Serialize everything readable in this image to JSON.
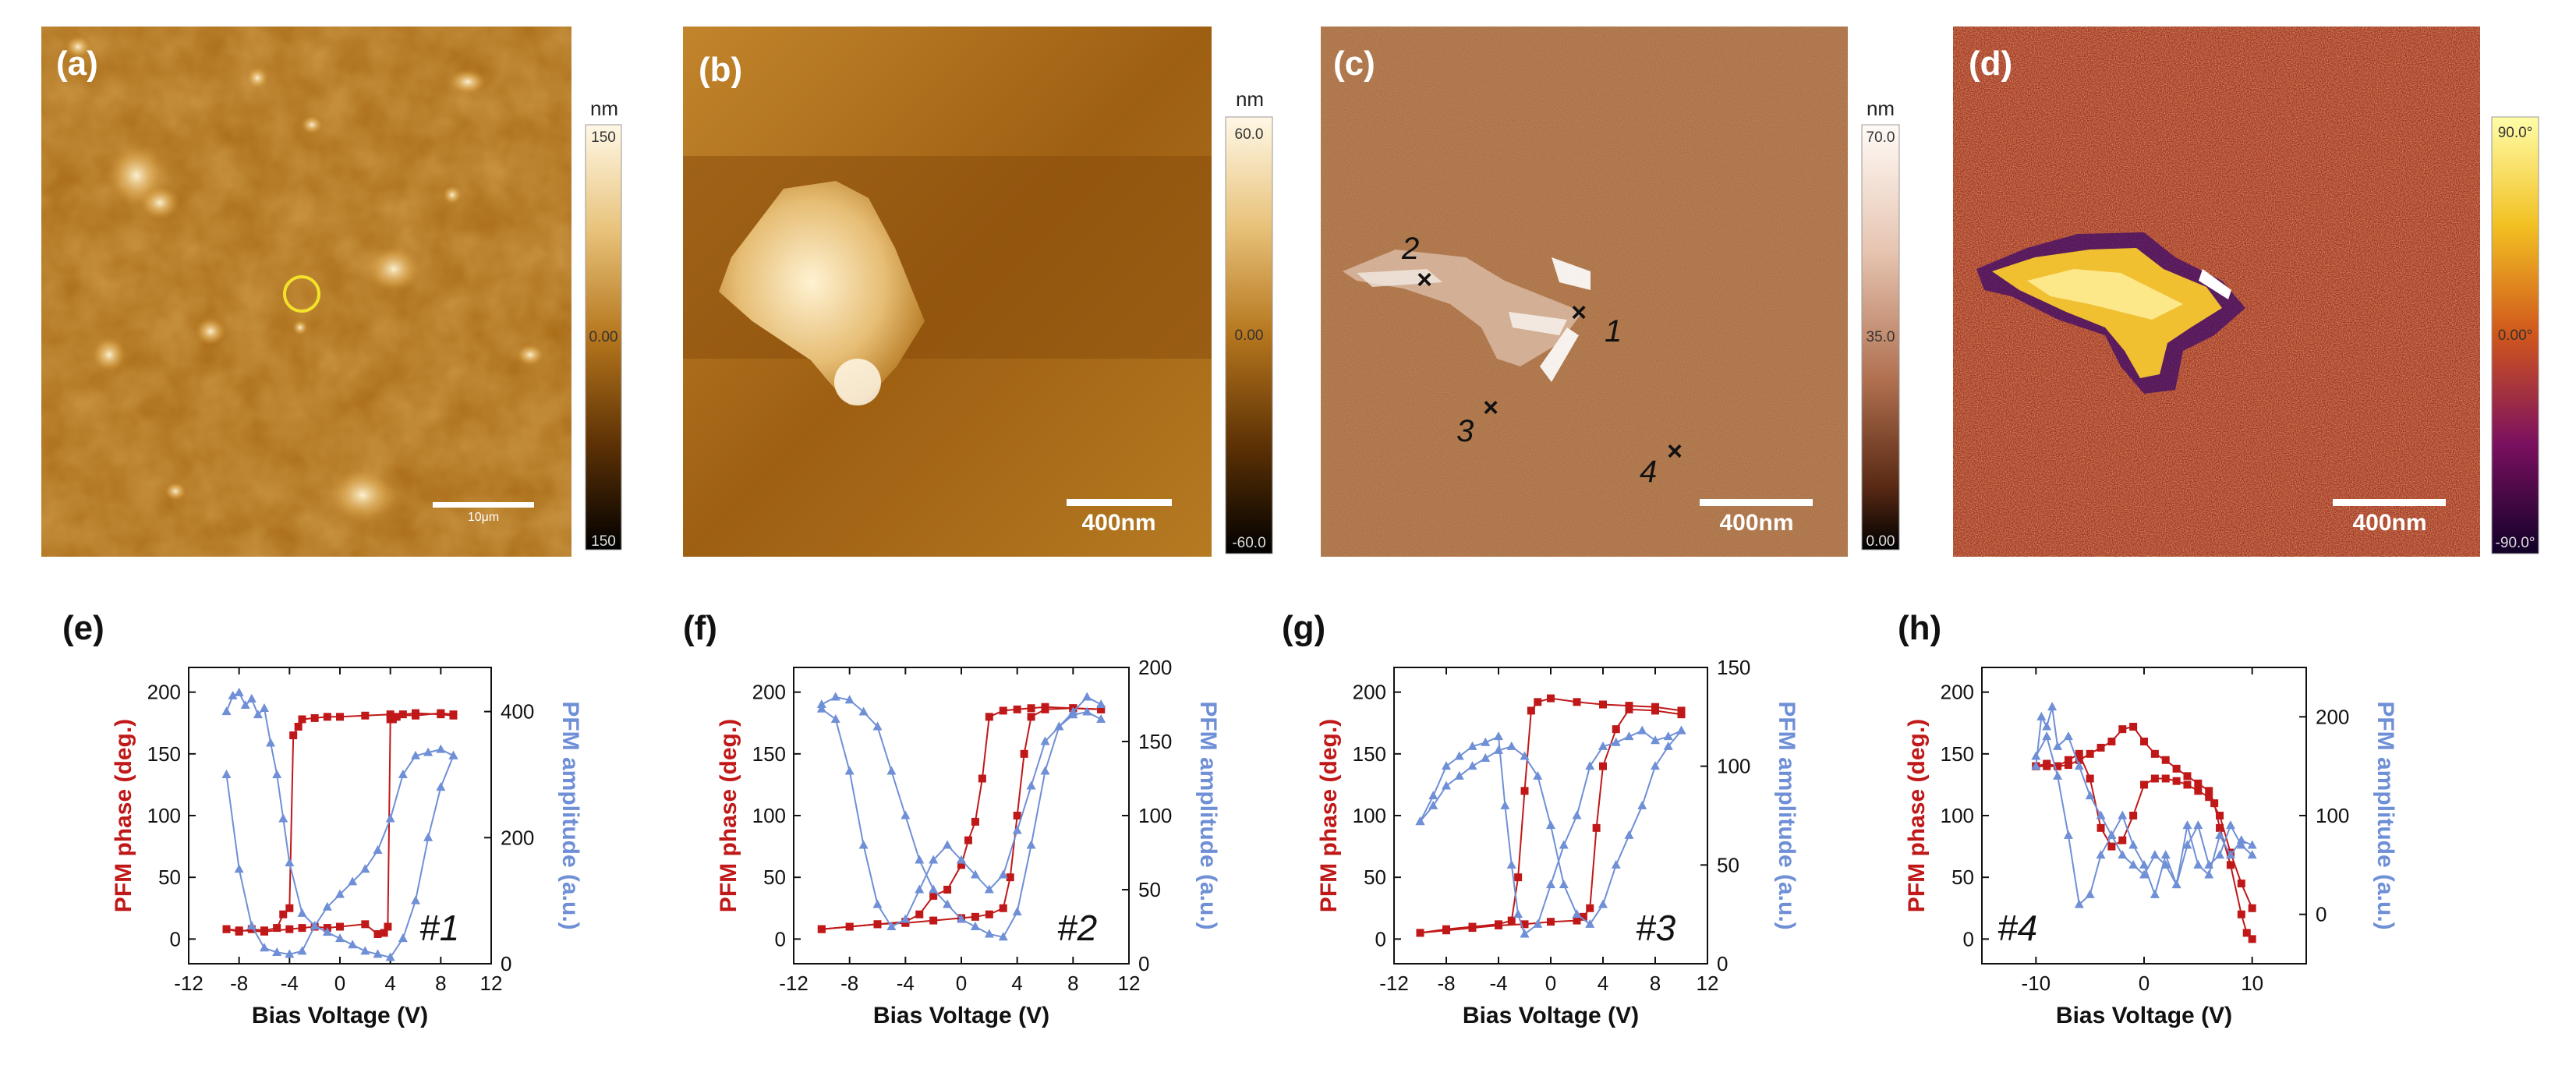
{
  "images": [
    {
      "label": "(a)",
      "colorbar_unit": "nm",
      "colorbar_ticks": [
        "150",
        "0.00",
        "150"
      ],
      "scalebar": "10μm",
      "colormap": "afm-gold"
    },
    {
      "label": "(b)",
      "colorbar_unit": "nm",
      "colorbar_ticks": [
        "60.0",
        "0.00",
        "-60.0"
      ],
      "scalebar": "400nm",
      "colormap": "afm-gold"
    },
    {
      "label": "(c)",
      "colorbar_unit": "nm",
      "colorbar_ticks": [
        "70.0",
        "35.0",
        "0.00"
      ],
      "scalebar": "400nm",
      "colormap": "afm-brown",
      "points": [
        {
          "label": "1"
        },
        {
          "label": "2"
        },
        {
          "label": "3"
        },
        {
          "label": "4"
        }
      ]
    },
    {
      "label": "(d)",
      "colorbar_unit": "",
      "colorbar_ticks": [
        "90.0°",
        "0.00°",
        "-90.0°"
      ],
      "scalebar": "400nm",
      "colormap": "phase"
    }
  ],
  "colors": {
    "phase": "#c01818",
    "amplitude": "#6f8fd6",
    "marker_circle": "#f2e22a"
  },
  "chart_data": [
    {
      "type": "line",
      "label": "(e)",
      "curve_label": "#1",
      "xlabel": "Bias Voltage (V)",
      "ylabel": "PFM phase (deg.)",
      "y2label": "PFM amplitude (a.u.)",
      "xlim": [
        -12,
        12
      ],
      "xticks": [
        -12,
        -8,
        -4,
        0,
        4,
        8,
        12
      ],
      "ylim": [
        -20,
        220
      ],
      "yticks": [
        0,
        50,
        100,
        150,
        200
      ],
      "y2lim": [
        0,
        470
      ],
      "y2ticks": [
        0,
        200,
        400
      ],
      "series": [
        {
          "axis": "y",
          "marker": "square",
          "color": "#c01818",
          "x": [
            -9,
            -8,
            -7,
            -6,
            -5,
            -4.5,
            -4,
            -3.7,
            -3.3,
            -3,
            -2,
            -1,
            0,
            2,
            4,
            6,
            8,
            9
          ],
          "y": [
            8,
            6,
            8,
            7,
            9,
            20,
            25,
            165,
            172,
            178,
            179,
            180,
            180,
            181,
            182,
            181,
            183,
            182
          ]
        },
        {
          "axis": "y",
          "marker": "square",
          "color": "#c01818",
          "x": [
            9,
            8,
            6,
            5,
            4.5,
            4.2,
            4,
            3.8,
            3.5,
            3,
            2,
            0,
            -1,
            -2,
            -3,
            -4,
            -6,
            -8,
            -9
          ],
          "y": [
            181,
            182,
            183,
            182,
            180,
            178,
            178,
            10,
            5,
            4,
            12,
            10,
            9,
            10,
            9,
            8,
            6,
            7,
            8
          ]
        },
        {
          "axis": "y2",
          "marker": "triangle",
          "color": "#6f8fd6",
          "x": [
            -9,
            -8.5,
            -8,
            -7.5,
            -7,
            -6.5,
            -6,
            -5.5,
            -5,
            -4.5,
            -4,
            -3,
            -2,
            -1,
            0,
            1,
            2,
            3,
            4,
            5,
            6,
            7,
            8,
            9
          ],
          "y": [
            400,
            425,
            430,
            410,
            420,
            395,
            405,
            350,
            300,
            230,
            160,
            80,
            60,
            50,
            40,
            30,
            20,
            15,
            10,
            40,
            100,
            200,
            280,
            330
          ]
        },
        {
          "axis": "y2",
          "marker": "triangle",
          "color": "#6f8fd6",
          "x": [
            9,
            8,
            7,
            6,
            5,
            4,
            3,
            2,
            1,
            0,
            -1,
            -2,
            -3,
            -4,
            -5,
            -6,
            -7,
            -8,
            -9
          ],
          "y": [
            330,
            340,
            335,
            330,
            300,
            230,
            180,
            150,
            130,
            110,
            90,
            60,
            20,
            15,
            18,
            25,
            60,
            150,
            300
          ]
        }
      ]
    },
    {
      "type": "line",
      "label": "(f)",
      "curve_label": "#2",
      "xlabel": "Bias Voltage (V)",
      "ylabel": "PFM phase (deg.)",
      "y2label": "PFM amplitude (a.u.)",
      "xlim": [
        -12,
        12
      ],
      "xticks": [
        -12,
        -8,
        -4,
        0,
        4,
        8,
        12
      ],
      "ylim": [
        -20,
        220
      ],
      "yticks": [
        0,
        50,
        100,
        150,
        200
      ],
      "y2lim": [
        0,
        200
      ],
      "y2ticks": [
        0,
        50,
        100,
        150,
        200
      ],
      "series": [
        {
          "axis": "y",
          "marker": "square",
          "color": "#c01818",
          "x": [
            -10,
            -8,
            -6,
            -4,
            -3,
            -2,
            -1,
            0,
            0.5,
            1,
            1.5,
            2,
            3,
            4,
            5,
            6,
            8,
            10
          ],
          "y": [
            8,
            10,
            12,
            14,
            20,
            35,
            40,
            60,
            80,
            95,
            130,
            180,
            185,
            186,
            187,
            188,
            187,
            186
          ]
        },
        {
          "axis": "y",
          "marker": "square",
          "color": "#c01818",
          "x": [
            10,
            8,
            6,
            5,
            4.5,
            4,
            3.5,
            3,
            2,
            1,
            0,
            -2,
            -4,
            -6,
            -8,
            -10
          ],
          "y": [
            186,
            187,
            186,
            180,
            150,
            100,
            50,
            25,
            20,
            18,
            17,
            15,
            13,
            12,
            10,
            8
          ]
        },
        {
          "axis": "y2",
          "marker": "triangle",
          "color": "#6f8fd6",
          "x": [
            -10,
            -9,
            -8,
            -7,
            -6,
            -5,
            -4,
            -3,
            -2,
            -1,
            0,
            1,
            2,
            3,
            4,
            5,
            6,
            7,
            8,
            9,
            10
          ],
          "y": [
            175,
            180,
            178,
            170,
            160,
            130,
            100,
            70,
            50,
            40,
            30,
            25,
            20,
            18,
            35,
            80,
            130,
            160,
            170,
            180,
            175
          ]
        },
        {
          "axis": "y2",
          "marker": "triangle",
          "color": "#6f8fd6",
          "x": [
            10,
            9,
            8,
            7,
            6,
            5,
            4,
            3,
            2,
            1,
            0,
            -1,
            -2,
            -3,
            -4,
            -5,
            -6,
            -7,
            -8,
            -9,
            -10
          ],
          "y": [
            165,
            170,
            168,
            160,
            150,
            120,
            90,
            60,
            50,
            60,
            70,
            80,
            70,
            50,
            30,
            25,
            40,
            80,
            130,
            165,
            172
          ]
        }
      ]
    },
    {
      "type": "line",
      "label": "(g)",
      "curve_label": "#3",
      "xlabel": "Bias Voltage (V)",
      "ylabel": "PFM phase (deg.)",
      "y2label": "PFM amplitude (a.u.)",
      "xlim": [
        -12,
        12
      ],
      "xticks": [
        -12,
        -8,
        -4,
        0,
        4,
        8,
        12
      ],
      "ylim": [
        -20,
        220
      ],
      "yticks": [
        0,
        50,
        100,
        150,
        200
      ],
      "y2lim": [
        0,
        150
      ],
      "y2ticks": [
        0,
        50,
        100,
        150
      ],
      "series": [
        {
          "axis": "y",
          "marker": "square",
          "color": "#c01818",
          "x": [
            -10,
            -8,
            -6,
            -4,
            -3,
            -2.5,
            -2,
            -1.5,
            -1,
            0,
            2,
            4,
            6,
            8,
            10
          ],
          "y": [
            5,
            8,
            10,
            12,
            15,
            50,
            120,
            185,
            192,
            195,
            192,
            190,
            189,
            188,
            185
          ]
        },
        {
          "axis": "y",
          "marker": "square",
          "color": "#c01818",
          "x": [
            10,
            8,
            6,
            5,
            4,
            3.5,
            3,
            2.5,
            2,
            0,
            -2,
            -4,
            -6,
            -8,
            -10
          ],
          "y": [
            182,
            185,
            186,
            170,
            140,
            90,
            25,
            18,
            15,
            14,
            12,
            11,
            9,
            7,
            5
          ]
        },
        {
          "axis": "y2",
          "marker": "triangle",
          "color": "#6f8fd6",
          "x": [
            -10,
            -9,
            -8,
            -7,
            -6,
            -5,
            -4,
            -3.5,
            -3,
            -2.5,
            -2,
            -1,
            0,
            1,
            2,
            3,
            4,
            5,
            6,
            7,
            8,
            9,
            10
          ],
          "y": [
            72,
            85,
            100,
            105,
            110,
            112,
            115,
            80,
            50,
            25,
            15,
            20,
            40,
            60,
            75,
            100,
            110,
            112,
            115,
            118,
            113,
            115,
            118
          ]
        },
        {
          "axis": "y2",
          "marker": "triangle",
          "color": "#6f8fd6",
          "x": [
            10,
            9,
            8,
            7,
            6,
            5,
            4,
            3,
            2,
            1,
            0,
            -1,
            -2,
            -3,
            -4,
            -5,
            -6,
            -7,
            -8,
            -9,
            -10
          ],
          "y": [
            118,
            110,
            100,
            80,
            65,
            50,
            30,
            20,
            25,
            40,
            70,
            95,
            105,
            110,
            108,
            104,
            100,
            95,
            90,
            80,
            72
          ]
        }
      ]
    },
    {
      "type": "line",
      "label": "(h)",
      "curve_label": "#4",
      "xlabel": "Bias Voltage (V)",
      "ylabel": "PFM phase (deg.)",
      "y2label": "PFM amplitude (a.u.)",
      "xlim": [
        -15,
        15
      ],
      "xticks": [
        -10,
        0,
        10
      ],
      "ylim": [
        -20,
        220
      ],
      "yticks": [
        0,
        50,
        100,
        150,
        200
      ],
      "y2lim": [
        -50,
        250
      ],
      "y2ticks": [
        0,
        100,
        200
      ],
      "series": [
        {
          "axis": "y",
          "marker": "square",
          "color": "#c01818",
          "x": [
            -10,
            -9,
            -8,
            -7,
            -6,
            -5,
            -4,
            -3,
            -2,
            -1,
            0,
            1,
            2,
            3,
            4,
            5,
            6,
            6.5,
            7,
            8,
            9,
            9.5,
            10
          ],
          "y": [
            140,
            142,
            140,
            141,
            145,
            150,
            155,
            160,
            170,
            172,
            160,
            150,
            145,
            138,
            132,
            126,
            120,
            110,
            90,
            60,
            20,
            5,
            0
          ]
        },
        {
          "axis": "y",
          "marker": "square",
          "color": "#c01818",
          "x": [
            10,
            9,
            8,
            7,
            6,
            5,
            4,
            3,
            2,
            1,
            0,
            -1,
            -2,
            -3,
            -4,
            -5,
            -6,
            -7,
            -8,
            -9,
            -10
          ],
          "y": [
            25,
            45,
            70,
            100,
            115,
            120,
            125,
            128,
            130,
            130,
            125,
            100,
            80,
            75,
            90,
            130,
            150,
            145,
            140,
            140,
            140
          ]
        },
        {
          "axis": "y2",
          "marker": "triangle",
          "color": "#6f8fd6",
          "x": [
            -10,
            -9.5,
            -9,
            -8.5,
            -8,
            -7,
            -6,
            -5,
            -4,
            -3,
            -2,
            -1,
            0,
            1,
            2,
            3,
            4,
            5,
            6,
            7,
            8,
            9,
            10
          ],
          "y": [
            150,
            200,
            190,
            210,
            170,
            180,
            150,
            120,
            100,
            80,
            60,
            50,
            40,
            60,
            50,
            30,
            70,
            90,
            50,
            60,
            90,
            70,
            60
          ]
        },
        {
          "axis": "y2",
          "marker": "triangle",
          "color": "#6f8fd6",
          "x": [
            10,
            9,
            8,
            7,
            6,
            5,
            4,
            3,
            2,
            1,
            0,
            -1,
            -2,
            -3,
            -4,
            -5,
            -6,
            -7,
            -8,
            -9,
            -10
          ],
          "y": [
            70,
            75,
            60,
            80,
            40,
            50,
            90,
            30,
            60,
            20,
            50,
            70,
            100,
            80,
            60,
            20,
            10,
            80,
            140,
            180,
            160
          ]
        }
      ]
    }
  ]
}
